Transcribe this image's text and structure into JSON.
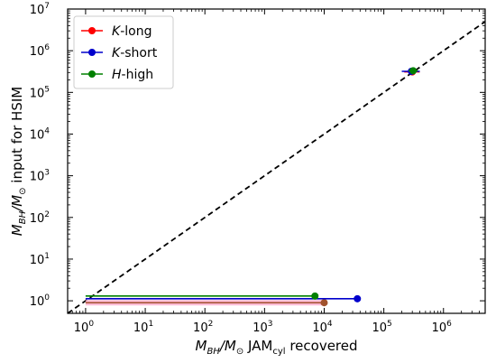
{
  "chart_data": {
    "type": "scatter",
    "xscale": "log",
    "yscale": "log",
    "xlim": [
      0.5,
      5000000
    ],
    "ylim": [
      0.5,
      10000000
    ],
    "x_tick_exponents": [
      0,
      1,
      2,
      3,
      4,
      5,
      6
    ],
    "y_tick_exponents": [
      0,
      1,
      2,
      3,
      4,
      5,
      6,
      7
    ],
    "x_tick_labels": [
      "10",
      "10",
      "10",
      "10",
      "10",
      "10",
      "10"
    ],
    "y_tick_labels": [
      "10",
      "10",
      "10",
      "10",
      "10",
      "10",
      "10",
      "10"
    ],
    "xlabel": {
      "pre": "M",
      "sub1": "BH",
      "mid": "/M",
      "sub2": "⊙",
      "post": " JAM",
      "sub3": "cyl",
      "end": " recovered"
    },
    "ylabel": {
      "pre": "M",
      "sub1": "BH",
      "mid": "/M",
      "sub2": "⊙",
      "post": " input for HSIM"
    },
    "one_to_one_line": true,
    "legend_position": "top-left",
    "series": [
      {
        "name": "K-long",
        "italic_part": "K",
        "rest": "-long",
        "color": "#ff0000",
        "points": [
          {
            "x": 300000,
            "y": 310000,
            "xerr_low": 80000,
            "xerr_high": 100000
          }
        ]
      },
      {
        "name": "K-short",
        "italic_part": "K",
        "rest": "-short",
        "color": "#0000cc",
        "points": [
          {
            "x": 290000,
            "y": 320000,
            "xerr_low": 90000,
            "xerr_high": 110000
          },
          {
            "x": 36000,
            "y": 1.12,
            "xerr_low": 35999,
            "xerr_high": 0
          }
        ]
      },
      {
        "name": "H-high",
        "italic_part": "H",
        "rest": "-high",
        "color": "#008000",
        "points": [
          {
            "x": 310000,
            "y": 330000,
            "xerr_low": 50000,
            "xerr_high": 60000
          },
          {
            "x": 7000,
            "y": 1.3,
            "xerr_low": 6999,
            "xerr_high": 0
          }
        ]
      }
    ],
    "extra_points": [
      {
        "x": 10000,
        "y": 0.9,
        "color": "#a0522d",
        "xerr_low": 9999,
        "xerr_high": 0,
        "band_color": "#ffaacc"
      }
    ]
  }
}
